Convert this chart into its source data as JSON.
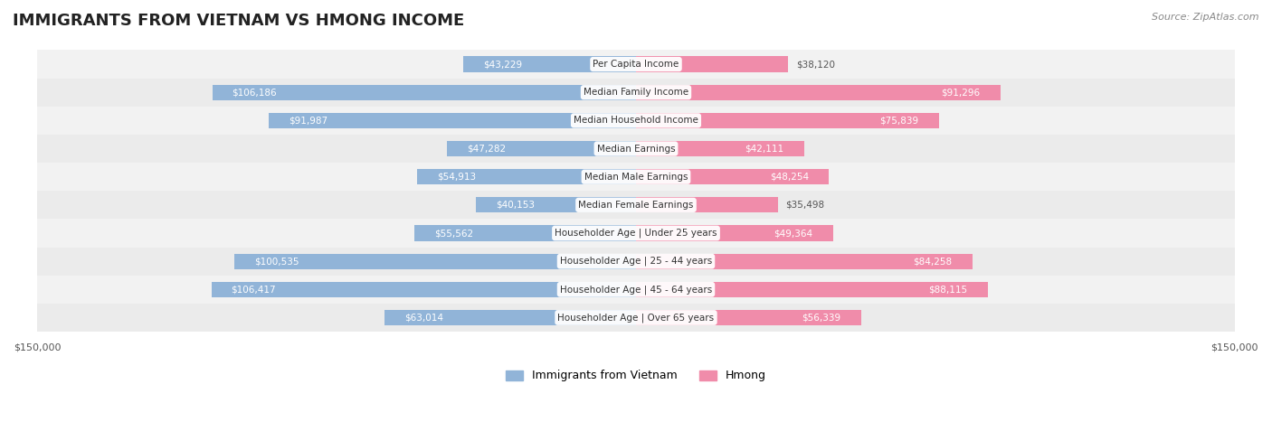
{
  "title": "IMMIGRANTS FROM VIETNAM VS HMONG INCOME",
  "source": "Source: ZipAtlas.com",
  "categories": [
    "Per Capita Income",
    "Median Family Income",
    "Median Household Income",
    "Median Earnings",
    "Median Male Earnings",
    "Median Female Earnings",
    "Householder Age | Under 25 years",
    "Householder Age | 25 - 44 years",
    "Householder Age | 45 - 64 years",
    "Householder Age | Over 65 years"
  ],
  "vietnam_values": [
    43229,
    106186,
    91987,
    47282,
    54913,
    40153,
    55562,
    100535,
    106417,
    63014
  ],
  "hmong_values": [
    38120,
    91296,
    75839,
    42111,
    48254,
    35498,
    49364,
    84258,
    88115,
    56339
  ],
  "vietnam_labels": [
    "$43,229",
    "$106,186",
    "$91,987",
    "$47,282",
    "$54,913",
    "$40,153",
    "$55,562",
    "$100,535",
    "$106,417",
    "$63,014"
  ],
  "hmong_labels": [
    "$38,120",
    "$91,296",
    "$75,839",
    "$42,111",
    "$48,254",
    "$35,498",
    "$49,364",
    "$84,258",
    "$88,115",
    "$56,339"
  ],
  "vietnam_color": "#91b4d8",
  "hmong_color": "#f08caa",
  "vietnam_color_dark": "#6193c7",
  "hmong_color_dark": "#e8607a",
  "max_value": 150000,
  "bar_height": 0.55,
  "row_bg_color": "#f0f0f0",
  "row_bg_color_alt": "#e8e8e8",
  "label_color_inside": "#ffffff",
  "label_color_outside": "#555555",
  "inside_threshold": 20000,
  "legend_label_vietnam": "Immigrants from Vietnam",
  "legend_label_hmong": "Hmong"
}
